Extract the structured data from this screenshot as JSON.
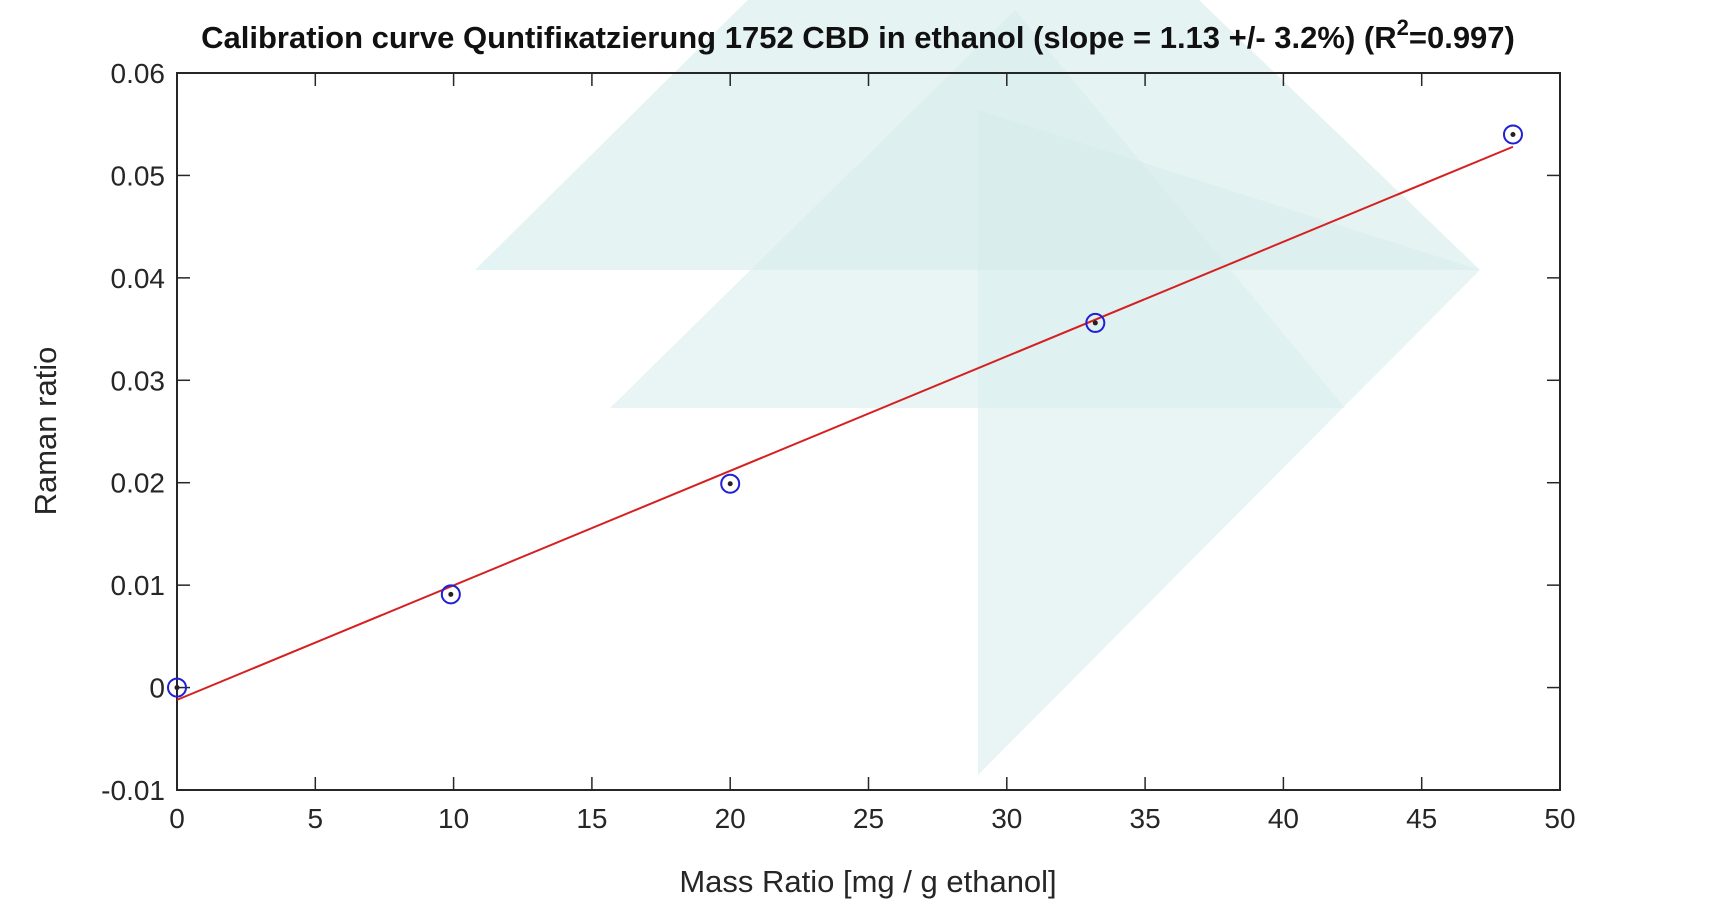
{
  "chart_data": {
    "type": "scatter",
    "title": "Calibration curve Quntifiкatzierung 1752 CBD in ethanol (slope = 1.13 +/- 3.2%) (R",
    "title_superscript": "2",
    "title_suffix": "=0.997)",
    "xlabel": "Mass Ratio [mg / g ethanol]",
    "ylabel": "Raman ratio",
    "xlim": [
      0,
      50
    ],
    "ylim": [
      -0.01,
      0.06
    ],
    "xticks": [
      0,
      5,
      10,
      15,
      20,
      25,
      30,
      35,
      40,
      45,
      50
    ],
    "yticks": [
      -0.01,
      0,
      0.01,
      0.02,
      0.03,
      0.04,
      0.05,
      0.06
    ],
    "xtick_labels": [
      "0",
      "5",
      "10",
      "15",
      "20",
      "25",
      "30",
      "35",
      "40",
      "45",
      "50"
    ],
    "ytick_labels": [
      "-0.01",
      "0",
      "0.01",
      "0.02",
      "0.03",
      "0.04",
      "0.05",
      "0.06"
    ],
    "grid": false,
    "series": [
      {
        "kind": "points",
        "marker": "circle-dot",
        "color": "#1f1fd6",
        "x": [
          0,
          9.9,
          20.0,
          33.2,
          48.3
        ],
        "y": [
          0.0,
          0.0091,
          0.0199,
          0.0356,
          0.054
        ]
      },
      {
        "kind": "fit-line",
        "color": "#d62020",
        "x": [
          0,
          48.3
        ],
        "y": [
          -0.0012,
          0.0528
        ]
      }
    ]
  },
  "colors": {
    "axis": "#262626",
    "marker": "#1f1fd6",
    "fit_line": "#d62020",
    "watermark": "#cfe9ea"
  },
  "watermark": {
    "icon": "teal-triangle-logo"
  }
}
